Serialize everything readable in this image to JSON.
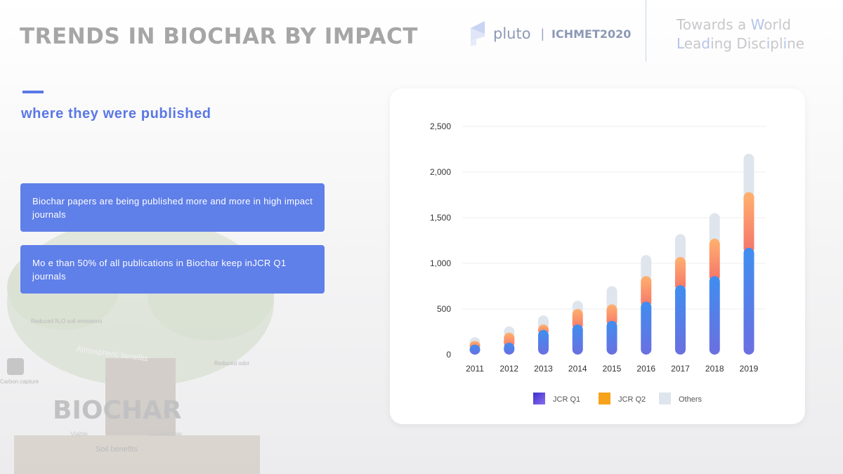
{
  "header": {
    "title": "TRENDS IN BIOCHAR BY IMPACT",
    "logo": {
      "brand": "pluto",
      "separator": "|",
      "conference": "ICHMET2020",
      "icon": "pluto-logo-icon"
    },
    "tagline": {
      "line1a": "Towards a ",
      "line1b": "W",
      "line1c": "orld",
      "line2a": "L",
      "line2b": "ea",
      "line2c": "d",
      "line2d": "ing Disc",
      "line2e": "i",
      "line2f": "pl",
      "line2g": "i",
      "line2h": "ne"
    }
  },
  "subtitle": "where they were published",
  "callouts": [
    "Biochar papers are being published more and more in high impact journals",
    "Mo e than 50% of all publications in Biochar keep inJCR Q1 journals"
  ],
  "background_art": {
    "word": "BIOCHAR",
    "labels": [
      "Reduced N₂O soil emissions",
      "Atmospheric benefits",
      "Reduced odor",
      "Carbon capture",
      "Soil benefits",
      "Viable",
      "Sustainable"
    ]
  },
  "colors": {
    "accent": "#5a78e4",
    "q1_top": "#3f8ef0",
    "q1_bottom": "#6b6fe0",
    "q2_top": "#ffb16e",
    "q2_bottom": "#f5736a",
    "others": "#dfe5ec"
  },
  "chart_data": {
    "type": "bar",
    "stacked": true,
    "categories": [
      "2011",
      "2012",
      "2013",
      "2014",
      "2015",
      "2016",
      "2017",
      "2018",
      "2019"
    ],
    "series": [
      {
        "name": "JCR Q1",
        "values": [
          110,
          130,
          270,
          330,
          370,
          580,
          760,
          860,
          1170
        ]
      },
      {
        "name": "JCR Q2",
        "values": [
          40,
          110,
          60,
          170,
          180,
          280,
          310,
          410,
          610
        ]
      },
      {
        "name": "Others",
        "values": [
          40,
          70,
          100,
          90,
          200,
          230,
          250,
          280,
          420
        ]
      }
    ],
    "yticks": [
      "0",
      "500",
      "1,000",
      "1,500",
      "2,000",
      "2,500"
    ],
    "ylim": [
      0,
      2500
    ],
    "grid": true,
    "legend": "bottom-center"
  }
}
